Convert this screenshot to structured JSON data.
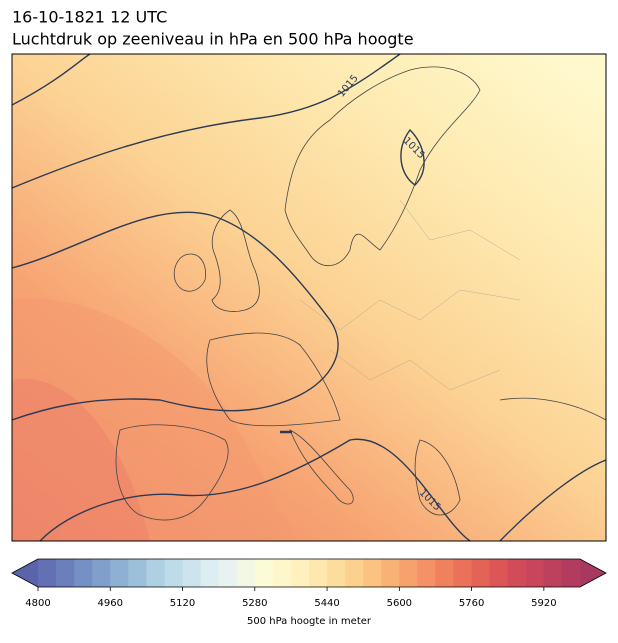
{
  "header": {
    "line1": "16-10-1821 12 UTC",
    "line2": "Luchtdruk op zeeniveau in hPa en 500 hPa hoogte"
  },
  "map": {
    "contour_labels": [
      "1015",
      "1015",
      "1015"
    ]
  },
  "colorbar": {
    "label": "500 hPa hoogte in meter",
    "range": [
      4800,
      6000
    ],
    "ticks": [
      4800,
      4960,
      5120,
      5280,
      5440,
      5600,
      5760,
      5920
    ],
    "under": "#5b63ad",
    "over": "#a8385f",
    "colors": [
      "#6470b4",
      "#6b7fbc",
      "#7490c4",
      "#80a0cb",
      "#8eb0d3",
      "#9dc0da",
      "#aed0e2",
      "#bddbe9",
      "#cde4ee",
      "#dceef2",
      "#e8f3ef",
      "#f2f8e4",
      "#fbfbd6",
      "#fff7cc",
      "#fff0bd",
      "#fee8ad",
      "#fddd9d",
      "#fcd08e",
      "#fbc281",
      "#f9b276",
      "#f7a26d",
      "#f49166",
      "#f0815f",
      "#ea715a",
      "#e46357",
      "#dc5657",
      "#d24b58",
      "#c8455b",
      "#bd405d",
      "#b23c5f"
    ]
  }
}
